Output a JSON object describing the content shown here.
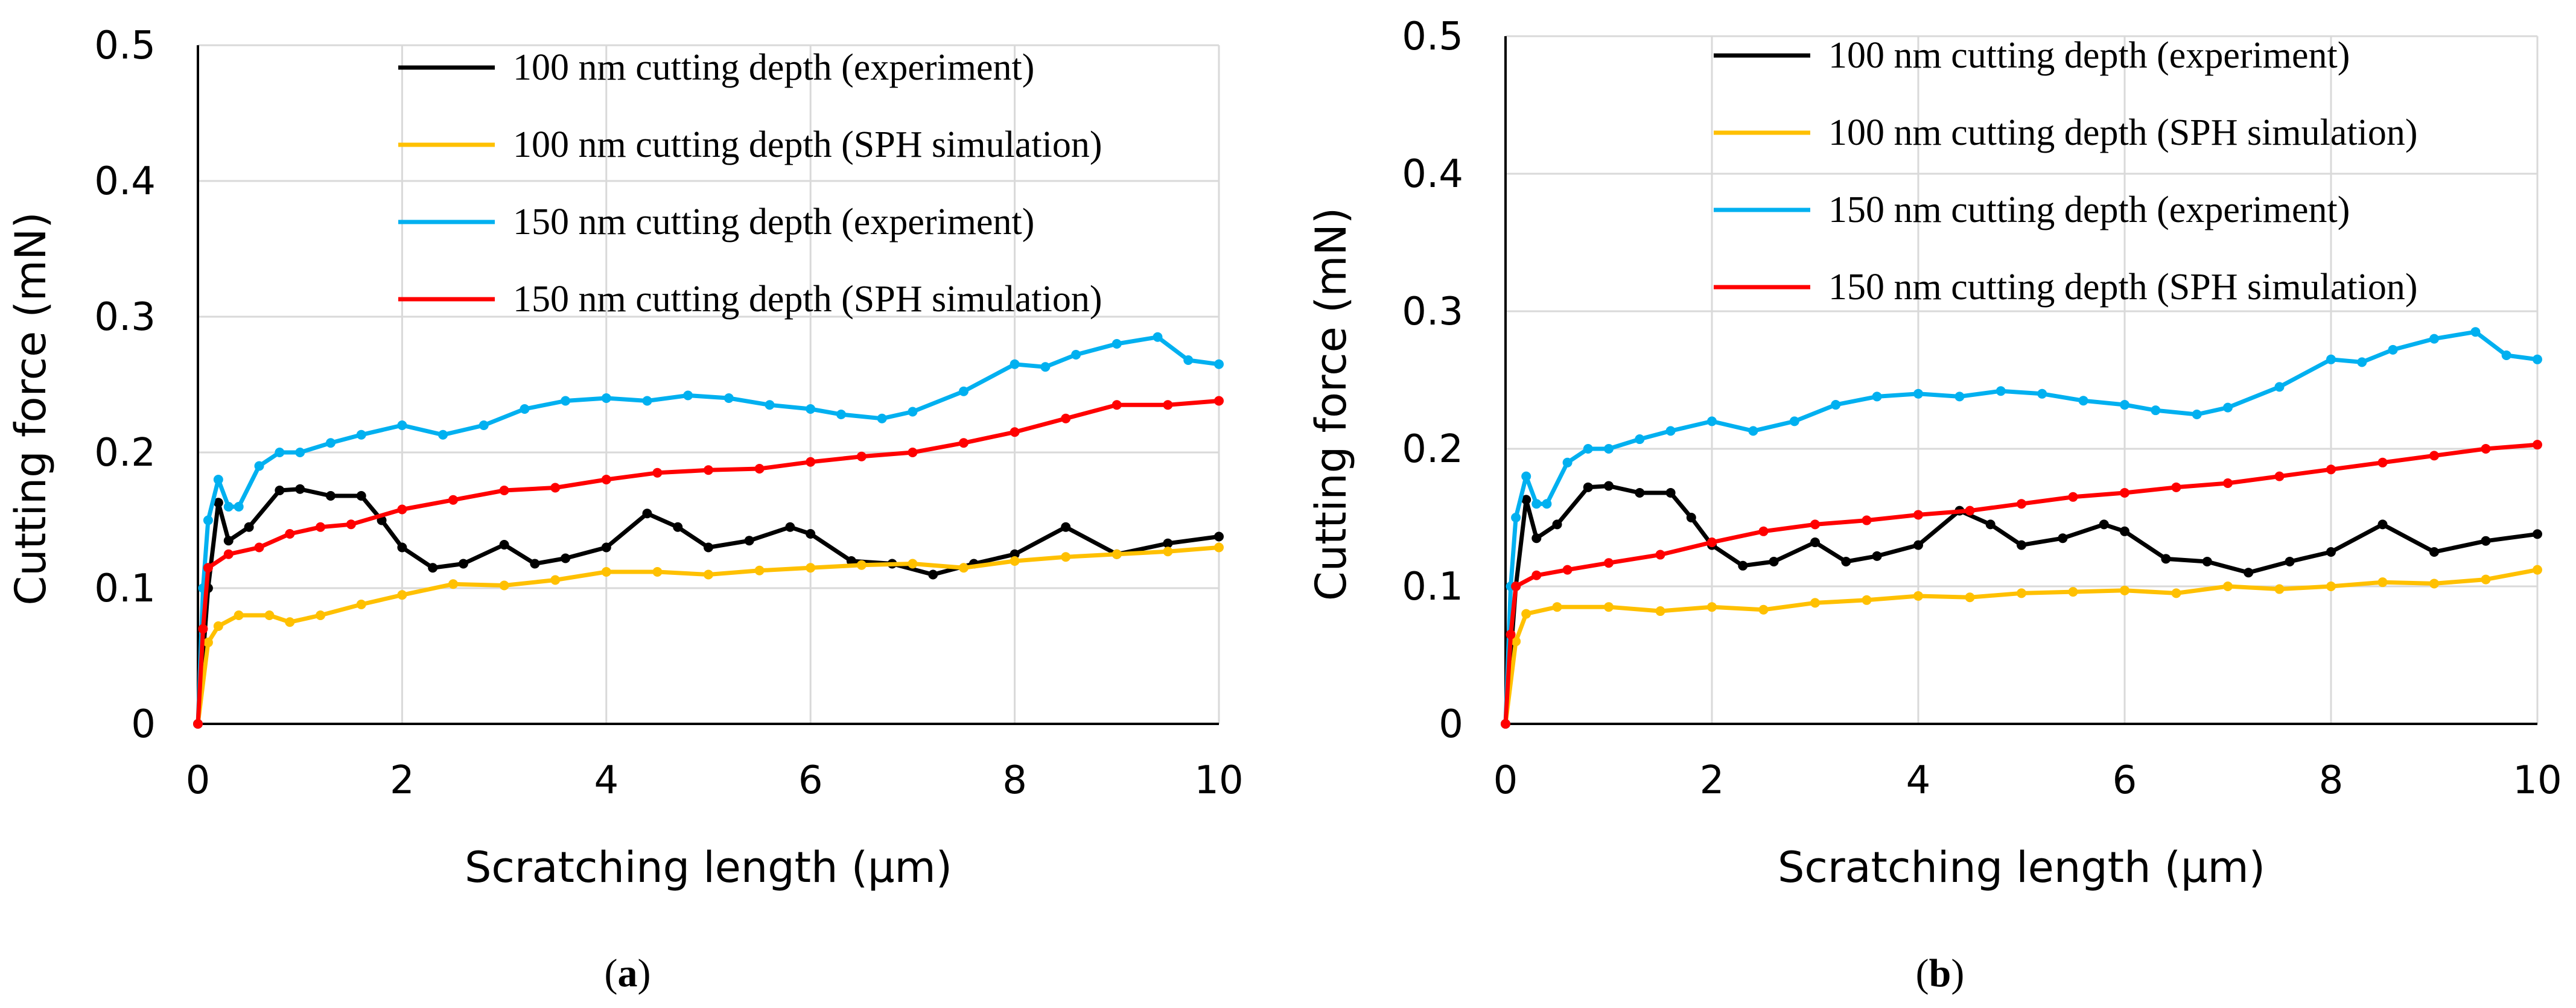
{
  "chart_data": [
    {
      "type": "line",
      "panel_label": "a",
      "xlabel": "Scratching length (μm)",
      "ylabel": "Cutting force (mN)",
      "xlim": [
        0,
        10
      ],
      "ylim": [
        0,
        0.5
      ],
      "x_ticks": [
        "0",
        "2",
        "4",
        "6",
        "8",
        "10"
      ],
      "y_ticks": [
        "0",
        "0.1",
        "0.2",
        "0.3",
        "0.4",
        "0.5"
      ],
      "grid": true,
      "legend_position": "top-right",
      "series": [
        {
          "name": "100 nm cutting depth (experiment)",
          "color": "#000000",
          "x": [
            0,
            0.1,
            0.2,
            0.3,
            0.5,
            0.8,
            1.0,
            1.3,
            1.6,
            1.8,
            2.0,
            2.3,
            2.6,
            3.0,
            3.3,
            3.6,
            4.0,
            4.4,
            4.7,
            5.0,
            5.4,
            5.8,
            6.0,
            6.4,
            6.8,
            7.2,
            7.6,
            8.0,
            8.5,
            9.0,
            9.5,
            10.0
          ],
          "y": [
            0,
            0.1,
            0.163,
            0.135,
            0.145,
            0.172,
            0.173,
            0.168,
            0.168,
            0.15,
            0.13,
            0.115,
            0.118,
            0.132,
            0.118,
            0.122,
            0.13,
            0.155,
            0.145,
            0.13,
            0.135,
            0.145,
            0.14,
            0.12,
            0.118,
            0.11,
            0.118,
            0.125,
            0.145,
            0.125,
            0.133,
            0.138
          ]
        },
        {
          "name": "100 nm cutting depth (SPH simulation)",
          "color": "#FFC000",
          "x": [
            0,
            0.1,
            0.2,
            0.4,
            0.7,
            0.9,
            1.2,
            1.6,
            2.0,
            2.5,
            3.0,
            3.5,
            4.0,
            4.5,
            5.0,
            5.5,
            6.0,
            6.5,
            7.0,
            7.5,
            8.0,
            8.5,
            9.0,
            9.5,
            10.0
          ],
          "y": [
            0,
            0.06,
            0.072,
            0.08,
            0.08,
            0.075,
            0.08,
            0.088,
            0.095,
            0.103,
            0.102,
            0.106,
            0.112,
            0.112,
            0.11,
            0.113,
            0.115,
            0.117,
            0.118,
            0.115,
            0.12,
            0.123,
            0.125,
            0.127,
            0.13
          ]
        },
        {
          "name": "150 nm cutting depth (experiment)",
          "color": "#00B0F0",
          "x": [
            0,
            0.05,
            0.1,
            0.2,
            0.3,
            0.4,
            0.6,
            0.8,
            1.0,
            1.3,
            1.6,
            2.0,
            2.4,
            2.8,
            3.2,
            3.6,
            4.0,
            4.4,
            4.8,
            5.2,
            5.6,
            6.0,
            6.3,
            6.7,
            7.0,
            7.5,
            8.0,
            8.3,
            8.6,
            9.0,
            9.4,
            9.7,
            10.0
          ],
          "y": [
            0,
            0.1,
            0.15,
            0.18,
            0.16,
            0.16,
            0.19,
            0.2,
            0.2,
            0.207,
            0.213,
            0.22,
            0.213,
            0.22,
            0.232,
            0.238,
            0.24,
            0.238,
            0.242,
            0.24,
            0.235,
            0.232,
            0.228,
            0.225,
            0.23,
            0.245,
            0.265,
            0.263,
            0.272,
            0.28,
            0.285,
            0.268,
            0.265
          ]
        },
        {
          "name": "150 nm cutting depth (SPH simulation)",
          "color": "#FF0000",
          "x": [
            0,
            0.05,
            0.1,
            0.3,
            0.6,
            0.9,
            1.2,
            1.5,
            2.0,
            2.5,
            3.0,
            3.5,
            4.0,
            4.5,
            5.0,
            5.5,
            6.0,
            6.5,
            7.0,
            7.5,
            8.0,
            8.5,
            9.0,
            9.5,
            10.0
          ],
          "y": [
            0,
            0.07,
            0.115,
            0.125,
            0.13,
            0.14,
            0.145,
            0.147,
            0.158,
            0.165,
            0.172,
            0.174,
            0.18,
            0.185,
            0.187,
            0.188,
            0.193,
            0.197,
            0.2,
            0.207,
            0.215,
            0.225,
            0.235,
            0.235,
            0.238
          ]
        }
      ]
    },
    {
      "type": "line",
      "panel_label": "b",
      "xlabel": "Scratching length (μm)",
      "ylabel": "Cutting force (mN)",
      "xlim": [
        0,
        10
      ],
      "ylim": [
        0,
        0.5
      ],
      "x_ticks": [
        "0",
        "2",
        "4",
        "6",
        "8",
        "10"
      ],
      "y_ticks": [
        "0",
        "0.1",
        "0.2",
        "0.3",
        "0.4",
        "0.5"
      ],
      "grid": true,
      "legend_position": "top-right",
      "series": [
        {
          "name": "100 nm cutting depth (experiment)",
          "color": "#000000",
          "x": [
            0,
            0.1,
            0.2,
            0.3,
            0.5,
            0.8,
            1.0,
            1.3,
            1.6,
            1.8,
            2.0,
            2.3,
            2.6,
            3.0,
            3.3,
            3.6,
            4.0,
            4.4,
            4.7,
            5.0,
            5.4,
            5.8,
            6.0,
            6.4,
            6.8,
            7.2,
            7.6,
            8.0,
            8.5,
            9.0,
            9.5,
            10.0
          ],
          "y": [
            0,
            0.1,
            0.163,
            0.135,
            0.145,
            0.172,
            0.173,
            0.168,
            0.168,
            0.15,
            0.13,
            0.115,
            0.118,
            0.132,
            0.118,
            0.122,
            0.13,
            0.155,
            0.145,
            0.13,
            0.135,
            0.145,
            0.14,
            0.12,
            0.118,
            0.11,
            0.118,
            0.125,
            0.145,
            0.125,
            0.133,
            0.138
          ]
        },
        {
          "name": "100 nm cutting depth (SPH simulation)",
          "color": "#FFC000",
          "x": [
            0,
            0.1,
            0.2,
            0.5,
            1.0,
            1.5,
            2.0,
            2.5,
            3.0,
            3.5,
            4.0,
            4.5,
            5.0,
            5.5,
            6.0,
            6.5,
            7.0,
            7.5,
            8.0,
            8.5,
            9.0,
            9.5,
            10.0
          ],
          "y": [
            0,
            0.06,
            0.08,
            0.085,
            0.085,
            0.082,
            0.085,
            0.083,
            0.088,
            0.09,
            0.093,
            0.092,
            0.095,
            0.096,
            0.097,
            0.095,
            0.1,
            0.098,
            0.1,
            0.103,
            0.102,
            0.105,
            0.112
          ]
        },
        {
          "name": "150 nm cutting depth (experiment)",
          "color": "#00B0F0",
          "x": [
            0,
            0.05,
            0.1,
            0.2,
            0.3,
            0.4,
            0.6,
            0.8,
            1.0,
            1.3,
            1.6,
            2.0,
            2.4,
            2.8,
            3.2,
            3.6,
            4.0,
            4.4,
            4.8,
            5.2,
            5.6,
            6.0,
            6.3,
            6.7,
            7.0,
            7.5,
            8.0,
            8.3,
            8.6,
            9.0,
            9.4,
            9.7,
            10.0
          ],
          "y": [
            0,
            0.1,
            0.15,
            0.18,
            0.16,
            0.16,
            0.19,
            0.2,
            0.2,
            0.207,
            0.213,
            0.22,
            0.213,
            0.22,
            0.232,
            0.238,
            0.24,
            0.238,
            0.242,
            0.24,
            0.235,
            0.232,
            0.228,
            0.225,
            0.23,
            0.245,
            0.265,
            0.263,
            0.272,
            0.28,
            0.285,
            0.268,
            0.265
          ]
        },
        {
          "name": "150 nm cutting depth (SPH simulation)",
          "color": "#FF0000",
          "x": [
            0,
            0.05,
            0.1,
            0.3,
            0.6,
            1.0,
            1.5,
            2.0,
            2.5,
            3.0,
            3.5,
            4.0,
            4.5,
            5.0,
            5.5,
            6.0,
            6.5,
            7.0,
            7.5,
            8.0,
            8.5,
            9.0,
            9.5,
            10.0
          ],
          "y": [
            0,
            0.065,
            0.1,
            0.108,
            0.112,
            0.117,
            0.123,
            0.132,
            0.14,
            0.145,
            0.148,
            0.152,
            0.155,
            0.16,
            0.165,
            0.168,
            0.172,
            0.175,
            0.18,
            0.185,
            0.19,
            0.195,
            0.2,
            0.203
          ]
        }
      ]
    }
  ]
}
